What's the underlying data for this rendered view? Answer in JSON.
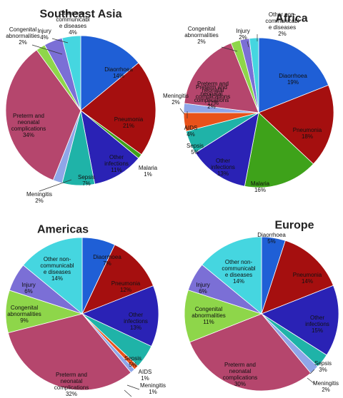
{
  "chart_data": [
    {
      "type": "pie",
      "title": "Southeast Asia",
      "slices": [
        {
          "label": "Diaorrhoea",
          "value": 14,
          "pct": "14%",
          "color": "#1f5fd6"
        },
        {
          "label": "Pneumonia",
          "value": 21,
          "pct": "21%",
          "color": "#a50f0f"
        },
        {
          "label": "Malaria",
          "value": 1,
          "pct": "1%",
          "color": "#3ea21a"
        },
        {
          "label": "Other infections",
          "value": 11,
          "pct": "11%",
          "color": "#2a22b5"
        },
        {
          "label": "Sepsis",
          "value": 7,
          "pct": "7%",
          "color": "#1fb3a8"
        },
        {
          "label": "Meningitis",
          "value": 2,
          "pct": "2%",
          "color": "#8fa6e8"
        },
        {
          "label": "Preterm and neonatal complications",
          "value": 34,
          "pct": "34%",
          "color": "#b5466d"
        },
        {
          "label": "Congenital abnormalities",
          "value": 2,
          "pct": "2%",
          "color": "#8ed64a"
        },
        {
          "label": "Injury",
          "value": 4,
          "pct": "4%",
          "color": "#7b6fd6"
        },
        {
          "label": "Other non-communicable diseases",
          "value": 4,
          "pct": "4%",
          "color": "#45d6e0"
        }
      ]
    },
    {
      "type": "pie",
      "title": "Africa",
      "slices": [
        {
          "label": "Diaorrhoea",
          "value": 19,
          "pct": "19%",
          "color": "#1f5fd6"
        },
        {
          "label": "Pneumonia",
          "value": 18,
          "pct": "18%",
          "color": "#a50f0f"
        },
        {
          "label": "Malaria",
          "value": 16,
          "pct": "16%",
          "color": "#3ea21a"
        },
        {
          "label": "Other infections",
          "value": 13,
          "pct": "13%",
          "color": "#2a22b5"
        },
        {
          "label": "Sepsis",
          "value": 5,
          "pct": "5%",
          "color": "#1fb3a8"
        },
        {
          "label": "AIDS",
          "value": 4,
          "pct": "4%",
          "color": "#e8521a"
        },
        {
          "label": "Meningitis",
          "value": 2,
          "pct": "2%",
          "color": "#8fa6e8"
        },
        {
          "label": "Preterm and neonatal complications",
          "value": 17,
          "pct": "17%",
          "color": "#b5466d"
        },
        {
          "label": "Congenital abnormalities",
          "value": 2,
          "pct": "2%",
          "color": "#8ed64a"
        },
        {
          "label": "Injury",
          "value": 2,
          "pct": "2%",
          "color": "#7b6fd6"
        },
        {
          "label": "Other non-communicable diseases",
          "value": 2,
          "pct": "2%",
          "color": "#45d6e0"
        }
      ]
    },
    {
      "type": "pie",
      "title": "Americas",
      "slices": [
        {
          "label": "Diaorrhoea",
          "value": 7,
          "pct": "7%",
          "color": "#1f5fd6"
        },
        {
          "label": "Pneumonia",
          "value": 12,
          "pct": "12%",
          "color": "#a50f0f"
        },
        {
          "label": "Other infections",
          "value": 13,
          "pct": "13%",
          "color": "#2a22b5"
        },
        {
          "label": "Sepsis",
          "value": 5,
          "pct": "5%",
          "color": "#1fb3a8"
        },
        {
          "label": "AIDS",
          "value": 1,
          "pct": "1%",
          "color": "#e8521a"
        },
        {
          "label": "Meningitis",
          "value": 1,
          "pct": "1%",
          "color": "#8fa6e8"
        },
        {
          "label": "Preterm and neonatal complications",
          "value": 32,
          "pct": "32%",
          "color": "#b5466d"
        },
        {
          "label": "Congenital abnormalities",
          "value": 9,
          "pct": "9%",
          "color": "#8ed64a"
        },
        {
          "label": "Injury",
          "value": 6,
          "pct": "6%",
          "color": "#7b6fd6"
        },
        {
          "label": "Other non-communicable diseases",
          "value": 14,
          "pct": "14%",
          "color": "#45d6e0"
        }
      ]
    },
    {
      "type": "pie",
      "title": "Europe",
      "slices": [
        {
          "label": "Diaorrhoea",
          "value": 5,
          "pct": "5%",
          "color": "#1f5fd6"
        },
        {
          "label": "Pneumonia",
          "value": 14,
          "pct": "14%",
          "color": "#a50f0f"
        },
        {
          "label": "Other infections",
          "value": 15,
          "pct": "15%",
          "color": "#2a22b5"
        },
        {
          "label": "Sepsis",
          "value": 3,
          "pct": "3%",
          "color": "#1fb3a8"
        },
        {
          "label": "Meningitis",
          "value": 2,
          "pct": "2%",
          "color": "#8fa6e8"
        },
        {
          "label": "Preterm and neonatal complications",
          "value": 30,
          "pct": "30%",
          "color": "#b5466d"
        },
        {
          "label": "Congenital abnormalities",
          "value": 11,
          "pct": "11%",
          "color": "#8ed64a"
        },
        {
          "label": "Injury",
          "value": 6,
          "pct": "6%",
          "color": "#7b6fd6"
        },
        {
          "label": "Other non-communicable diseases",
          "value": 14,
          "pct": "14%",
          "color": "#45d6e0"
        }
      ]
    }
  ]
}
